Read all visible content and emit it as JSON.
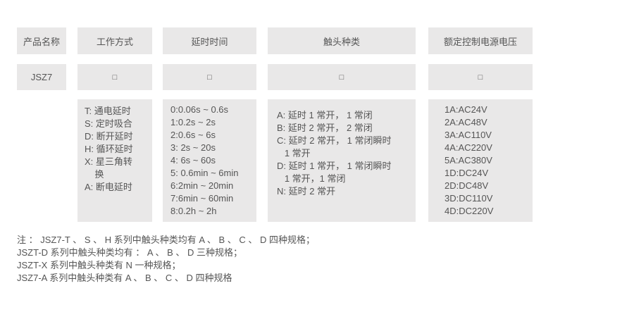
{
  "headers": [
    "产品名称",
    "工作方式",
    "延时时间",
    "触头种类",
    "额定控制电源电压"
  ],
  "model_row": [
    "JSZ7",
    "□",
    "□",
    "□",
    "□"
  ],
  "work_modes": [
    "T: 通电延时",
    "S: 定时吸合",
    "D: 断开延时",
    "H: 循环延时",
    "X: 星三角转",
    "    换",
    "A: 断电延时"
  ],
  "delay_times": [
    "0:0.06s ~ 0.6s",
    "1:0.2s ~ 2s",
    "2:0.6s ~ 6s",
    "3: 2s ~ 20s",
    "4: 6s ~ 60s",
    "5: 0.6min ~ 6min",
    "6:2min ~ 20min",
    "7:6min ~ 60min",
    "8:0.2h ~ 2h"
  ],
  "contact_types": [
    "A: 延时 1 常开， 1 常闭",
    "B: 延时 2 常开， 2 常闭",
    "C: 延时 2 常开， 1 常闭瞬时",
    "   1 常开",
    "D: 延时 1 常开， 1 常闭瞬时",
    "   1 常开，1 常闭",
    "N: 延时 2 常开"
  ],
  "voltages": [
    "1A:AC24V",
    "2A:AC48V",
    "3A:AC110V",
    "4A:AC220V",
    "5A:AC380V",
    "1D:DC24V",
    "2D:DC48V",
    "3D:DC110V",
    "4D:DC220V"
  ],
  "notes": [
    "注 ： JSZ7-T 、 S 、 H 系列中触头种类均有 A 、 B 、 C 、 D 四种规格；",
    "JSZT-D 系列中触头种类均有 ： A 、 B 、 D 三种规格；",
    "JSZT-X 系列中触头种类有 N 一种规格；",
    "JSZ7-A 系列中触头种类有 A 、 B 、 C 、 D 四种规格"
  ]
}
